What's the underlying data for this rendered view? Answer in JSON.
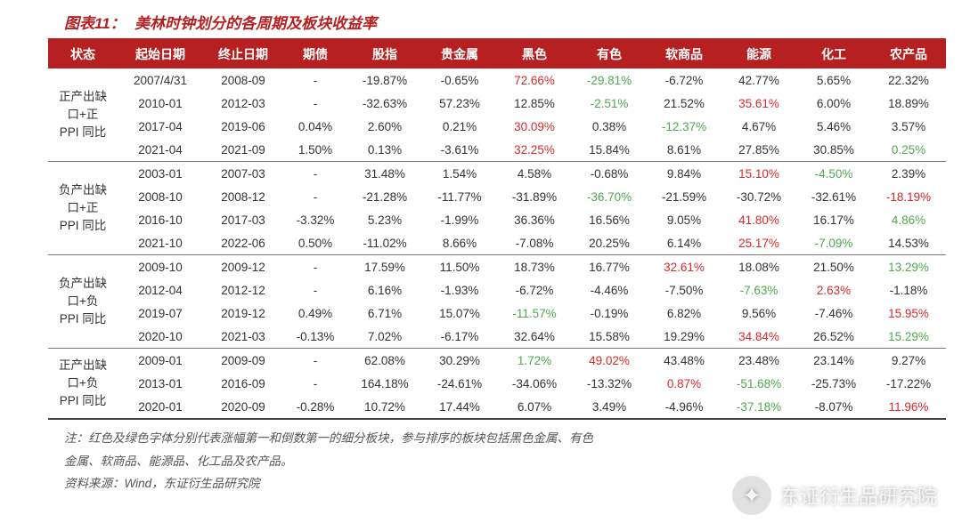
{
  "title": {
    "prefix": "图表11：",
    "main": "美林时钟划分的各周期及板块收益率"
  },
  "colors": {
    "header_bg": "#b62020",
    "header_text": "#ffffff",
    "cell_text": "#333333",
    "highlight_up": "#d82a2a",
    "highlight_down": "#4fa84f",
    "title_color": "#b62020"
  },
  "table": {
    "columns": [
      "状态",
      "起始日期",
      "终止日期",
      "期债",
      "股指",
      "贵金属",
      "黑色",
      "有色",
      "软商品",
      "能源",
      "化工",
      "农产品"
    ],
    "col_widths": [
      "78px",
      "96px",
      "90px",
      "72px",
      "84px",
      "84px",
      "84px",
      "84px",
      "84px",
      "84px",
      "84px",
      "84px"
    ],
    "groups": [
      {
        "state": "正产出缺口+正PPI 同比",
        "rows": [
          {
            "start": "2007/4/31",
            "end": "2008-09",
            "cells": [
              {
                "v": "-"
              },
              {
                "v": "-19.87%"
              },
              {
                "v": "-0.65%"
              },
              {
                "v": "72.66%",
                "c": "red"
              },
              {
                "v": "-29.81%",
                "c": "green"
              },
              {
                "v": "-6.72%"
              },
              {
                "v": "42.77%"
              },
              {
                "v": "5.65%"
              },
              {
                "v": "22.32%"
              }
            ]
          },
          {
            "start": "2010-01",
            "end": "2012-03",
            "cells": [
              {
                "v": "-"
              },
              {
                "v": "-32.63%"
              },
              {
                "v": "57.23%"
              },
              {
                "v": "12.85%"
              },
              {
                "v": "-2.51%",
                "c": "green"
              },
              {
                "v": "21.52%"
              },
              {
                "v": "35.61%",
                "c": "red"
              },
              {
                "v": "6.00%"
              },
              {
                "v": "18.89%"
              }
            ]
          },
          {
            "start": "2017-04",
            "end": "2019-06",
            "cells": [
              {
                "v": "0.04%"
              },
              {
                "v": "2.60%"
              },
              {
                "v": "0.21%"
              },
              {
                "v": "30.09%",
                "c": "red"
              },
              {
                "v": "0.38%"
              },
              {
                "v": "-12.37%",
                "c": "green"
              },
              {
                "v": "4.67%"
              },
              {
                "v": "5.46%"
              },
              {
                "v": "3.57%"
              }
            ]
          },
          {
            "start": "2021-04",
            "end": "2021-09",
            "cells": [
              {
                "v": "1.50%"
              },
              {
                "v": "0.13%"
              },
              {
                "v": "-3.61%"
              },
              {
                "v": "32.25%",
                "c": "red"
              },
              {
                "v": "15.84%"
              },
              {
                "v": "8.61%"
              },
              {
                "v": "27.85%"
              },
              {
                "v": "30.85%"
              },
              {
                "v": "0.25%",
                "c": "green"
              }
            ]
          }
        ]
      },
      {
        "state": "负产出缺口+正PPI 同比",
        "rows": [
          {
            "start": "2003-01",
            "end": "2007-03",
            "cells": [
              {
                "v": "-"
              },
              {
                "v": "31.48%"
              },
              {
                "v": "1.54%"
              },
              {
                "v": "4.58%"
              },
              {
                "v": "-0.68%"
              },
              {
                "v": "9.84%"
              },
              {
                "v": "15.10%",
                "c": "red"
              },
              {
                "v": "-4.50%",
                "c": "green"
              },
              {
                "v": "2.39%"
              }
            ]
          },
          {
            "start": "2008-10",
            "end": "2008-12",
            "cells": [
              {
                "v": "-"
              },
              {
                "v": "-21.28%"
              },
              {
                "v": "-11.77%"
              },
              {
                "v": "-31.89%"
              },
              {
                "v": "-36.70%",
                "c": "green"
              },
              {
                "v": "-21.59%"
              },
              {
                "v": "-30.72%"
              },
              {
                "v": "-32.61%"
              },
              {
                "v": "-18.19%",
                "c": "red"
              }
            ]
          },
          {
            "start": "2016-10",
            "end": "2017-03",
            "cells": [
              {
                "v": "-3.32%"
              },
              {
                "v": "5.23%"
              },
              {
                "v": "-1.99%"
              },
              {
                "v": "36.36%"
              },
              {
                "v": "16.56%"
              },
              {
                "v": "9.05%"
              },
              {
                "v": "41.80%",
                "c": "red"
              },
              {
                "v": "16.17%"
              },
              {
                "v": "4.86%",
                "c": "green"
              }
            ]
          },
          {
            "start": "2021-10",
            "end": "2022-06",
            "cells": [
              {
                "v": "0.50%"
              },
              {
                "v": "-11.02%"
              },
              {
                "v": "8.66%"
              },
              {
                "v": "-7.08%"
              },
              {
                "v": "20.25%"
              },
              {
                "v": "6.14%"
              },
              {
                "v": "25.17%",
                "c": "red"
              },
              {
                "v": "-7.09%",
                "c": "green"
              },
              {
                "v": "14.53%"
              }
            ]
          }
        ]
      },
      {
        "state": "负产出缺口+负PPI 同比",
        "rows": [
          {
            "start": "2009-10",
            "end": "2009-12",
            "cells": [
              {
                "v": "-"
              },
              {
                "v": "17.59%"
              },
              {
                "v": "11.50%"
              },
              {
                "v": "18.73%"
              },
              {
                "v": "16.77%"
              },
              {
                "v": "32.61%",
                "c": "red"
              },
              {
                "v": "18.08%"
              },
              {
                "v": "21.50%"
              },
              {
                "v": "13.29%",
                "c": "green"
              }
            ]
          },
          {
            "start": "2012-04",
            "end": "2012-12",
            "cells": [
              {
                "v": "-"
              },
              {
                "v": "6.16%"
              },
              {
                "v": "-1.93%"
              },
              {
                "v": "-6.72%"
              },
              {
                "v": "-4.46%"
              },
              {
                "v": "-7.50%"
              },
              {
                "v": "-7.63%",
                "c": "green"
              },
              {
                "v": "2.63%",
                "c": "red"
              },
              {
                "v": "-1.18%"
              }
            ]
          },
          {
            "start": "2019-07",
            "end": "2019-12",
            "cells": [
              {
                "v": "0.49%"
              },
              {
                "v": "6.71%"
              },
              {
                "v": "15.07%"
              },
              {
                "v": "-11.57%",
                "c": "green"
              },
              {
                "v": "-0.19%"
              },
              {
                "v": "6.82%"
              },
              {
                "v": "9.56%"
              },
              {
                "v": "-7.46%"
              },
              {
                "v": "15.95%",
                "c": "red"
              }
            ]
          },
          {
            "start": "2020-10",
            "end": "2021-03",
            "cells": [
              {
                "v": "-0.13%"
              },
              {
                "v": "7.02%"
              },
              {
                "v": "-6.17%"
              },
              {
                "v": "32.64%"
              },
              {
                "v": "15.58%"
              },
              {
                "v": "19.29%"
              },
              {
                "v": "34.84%",
                "c": "red"
              },
              {
                "v": "26.52%"
              },
              {
                "v": "15.29%",
                "c": "green"
              }
            ]
          }
        ]
      },
      {
        "state": "正产出缺口+负PPI 同比",
        "rows": [
          {
            "start": "2009-01",
            "end": "2009-09",
            "cells": [
              {
                "v": "-"
              },
              {
                "v": "62.08%"
              },
              {
                "v": "30.29%"
              },
              {
                "v": "1.72%",
                "c": "green"
              },
              {
                "v": "49.02%",
                "c": "red"
              },
              {
                "v": "43.48%"
              },
              {
                "v": "23.48%"
              },
              {
                "v": "23.14%"
              },
              {
                "v": "9.27%"
              }
            ]
          },
          {
            "start": "2013-01",
            "end": "2016-09",
            "cells": [
              {
                "v": "-"
              },
              {
                "v": "164.18%"
              },
              {
                "v": "-24.61%"
              },
              {
                "v": "-34.06%"
              },
              {
                "v": "-13.32%"
              },
              {
                "v": "0.87%",
                "c": "red"
              },
              {
                "v": "-51.68%",
                "c": "green"
              },
              {
                "v": "-25.73%"
              },
              {
                "v": "-17.22%"
              }
            ]
          },
          {
            "start": "2020-01",
            "end": "2020-09",
            "cells": [
              {
                "v": "-0.28%"
              },
              {
                "v": "10.72%"
              },
              {
                "v": "17.44%"
              },
              {
                "v": "6.07%"
              },
              {
                "v": "3.49%"
              },
              {
                "v": "-4.96%"
              },
              {
                "v": "-37.18%",
                "c": "green"
              },
              {
                "v": "-8.07%"
              },
              {
                "v": "11.96%",
                "c": "red"
              }
            ]
          }
        ]
      }
    ]
  },
  "footnotes": [
    "注：红色及绿色字体分别代表涨幅第一和倒数第一的细分板块，参与排序的板块包括黑色金属、有色",
    "金属、软商品、能源品、化工品及农产品。",
    "资料来源：Wind，东证衍生品研究院"
  ],
  "watermark": {
    "text": "东证衍生品研究院",
    "icon": "✦"
  }
}
